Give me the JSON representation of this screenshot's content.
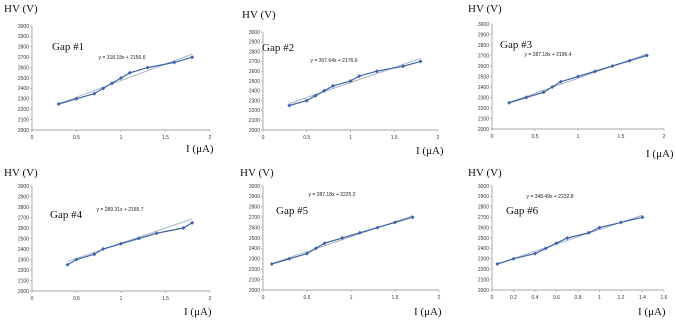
{
  "chart_data": [
    {
      "type": "line",
      "panel_label": "Gap #1",
      "ylabel": "HV (V)",
      "xlabel": "I (μA)",
      "equation": "y = 318.18x + 2156.6",
      "xlim": [
        0,
        2
      ],
      "ylim": [
        2000,
        3000
      ],
      "x_ticks": [
        "0",
        "0.5",
        "1",
        "1.5",
        "2"
      ],
      "y_ticks": [
        "2000",
        "2100",
        "2200",
        "2300",
        "2400",
        "2500",
        "2600",
        "2700",
        "2800",
        "2900",
        "3000"
      ],
      "series": [
        {
          "values": [
            [
              0.3,
              2250
            ],
            [
              0.5,
              2300
            ],
            [
              0.7,
              2350
            ],
            [
              0.8,
              2400
            ],
            [
              0.9,
              2450
            ],
            [
              1.0,
              2500
            ],
            [
              1.1,
              2550
            ],
            [
              1.3,
              2600
            ],
            [
              1.6,
              2650
            ],
            [
              1.8,
              2700
            ]
          ]
        }
      ],
      "trendline": {
        "slope": 318.18,
        "intercept": 2156.6,
        "x_range": [
          0.3,
          1.8
        ]
      },
      "colors": {
        "series": "#3e63a6",
        "trend": "#a7b4c6"
      }
    },
    {
      "type": "line",
      "panel_label": "Gap #2",
      "ylabel": "HV (V)",
      "xlabel": "I (μA)",
      "equation": "y = 307.64x + 2176.6",
      "xlim": [
        0,
        2
      ],
      "ylim": [
        2000,
        3000
      ],
      "x_ticks": [
        "0",
        "0.5",
        "1",
        "1.5",
        "2"
      ],
      "y_ticks": [
        "2000",
        "2100",
        "2200",
        "2300",
        "2400",
        "2500",
        "2600",
        "2700",
        "2800",
        "2900",
        "3000"
      ],
      "series": [
        {
          "values": [
            [
              0.3,
              2250
            ],
            [
              0.5,
              2300
            ],
            [
              0.6,
              2350
            ],
            [
              0.7,
              2400
            ],
            [
              0.8,
              2450
            ],
            [
              1.0,
              2500
            ],
            [
              1.1,
              2550
            ],
            [
              1.3,
              2600
            ],
            [
              1.6,
              2650
            ],
            [
              1.8,
              2700
            ]
          ]
        }
      ],
      "trendline": {
        "slope": 307.64,
        "intercept": 2176.6,
        "x_range": [
          0.3,
          1.8
        ]
      },
      "colors": {
        "series": "#3e63a6",
        "trend": "#a7b4c6"
      }
    },
    {
      "type": "line",
      "panel_label": "Gap #3",
      "ylabel": "HV (V)",
      "xlabel": "I (μA)",
      "equation": "y = 287.18x + 2196.4",
      "xlim": [
        0,
        2
      ],
      "ylim": [
        2000,
        3000
      ],
      "x_ticks": [
        "0",
        "0.5",
        "1",
        "1.5",
        "2"
      ],
      "y_ticks": [
        "2000",
        "2100",
        "2200",
        "2300",
        "2400",
        "2500",
        "2600",
        "2700",
        "2800",
        "2900",
        "3000"
      ],
      "series": [
        {
          "values": [
            [
              0.2,
              2250
            ],
            [
              0.4,
              2300
            ],
            [
              0.6,
              2350
            ],
            [
              0.7,
              2400
            ],
            [
              0.8,
              2450
            ],
            [
              1.0,
              2500
            ],
            [
              1.2,
              2550
            ],
            [
              1.4,
              2600
            ],
            [
              1.6,
              2650
            ],
            [
              1.8,
              2700
            ]
          ]
        }
      ],
      "trendline": {
        "slope": 287.18,
        "intercept": 2196.4,
        "x_range": [
          0.2,
          1.8
        ]
      },
      "colors": {
        "series": "#3e63a6",
        "trend": "#a7b4c6"
      }
    },
    {
      "type": "line",
      "panel_label": "Gap #4",
      "ylabel": "HV (V)",
      "xlabel": "I (μA)",
      "equation": "y = 289.31x + 2165.7",
      "xlim": [
        0,
        2
      ],
      "ylim": [
        2000,
        3000
      ],
      "x_ticks": [
        "0",
        "0.5",
        "1",
        "1.5",
        "2"
      ],
      "y_ticks": [
        "2000",
        "2100",
        "2200",
        "2300",
        "2400",
        "2500",
        "2600",
        "2700",
        "2800",
        "2900",
        "3000"
      ],
      "series": [
        {
          "values": [
            [
              0.4,
              2250
            ],
            [
              0.5,
              2300
            ],
            [
              0.7,
              2350
            ],
            [
              0.8,
              2400
            ],
            [
              1.0,
              2450
            ],
            [
              1.2,
              2500
            ],
            [
              1.4,
              2550
            ],
            [
              1.7,
              2600
            ],
            [
              1.8,
              2650
            ]
          ]
        }
      ],
      "trendline": {
        "slope": 289.31,
        "intercept": 2165.7,
        "x_range": [
          0.4,
          1.8
        ]
      },
      "colors": {
        "series": "#3e63a6",
        "trend": "#a7b4c6"
      }
    },
    {
      "type": "line",
      "panel_label": "Gap #5",
      "ylabel": "HV (V)",
      "xlabel": "I (μA)",
      "equation": "y = 287.18x + 2225.2",
      "xlim": [
        0,
        2
      ],
      "ylim": [
        2000,
        3000
      ],
      "x_ticks": [
        "0",
        "0.5",
        "1",
        "1.5",
        "2"
      ],
      "y_ticks": [
        "2000",
        "2100",
        "2200",
        "2300",
        "2400",
        "2500",
        "2600",
        "2700",
        "2800",
        "2900",
        "3000"
      ],
      "series": [
        {
          "values": [
            [
              0.1,
              2250
            ],
            [
              0.3,
              2300
            ],
            [
              0.5,
              2350
            ],
            [
              0.6,
              2400
            ],
            [
              0.7,
              2450
            ],
            [
              0.9,
              2500
            ],
            [
              1.1,
              2550
            ],
            [
              1.3,
              2600
            ],
            [
              1.5,
              2650
            ],
            [
              1.7,
              2700
            ]
          ]
        }
      ],
      "trendline": {
        "slope": 287.18,
        "intercept": 2225.2,
        "x_range": [
          0.1,
          1.7
        ]
      },
      "colors": {
        "series": "#3e63a6",
        "trend": "#a7b4c6"
      }
    },
    {
      "type": "line",
      "panel_label": "Gap #6",
      "ylabel": "HV (V)",
      "xlabel": "I (μA)",
      "equation": "y = 348.49x + 2232.8",
      "xlim": [
        0,
        1.6
      ],
      "ylim": [
        2000,
        3000
      ],
      "x_ticks": [
        "0",
        "0.2",
        "0.4",
        "0.6",
        "0.8",
        "1",
        "1.2",
        "1.4",
        "1.6"
      ],
      "y_ticks": [
        "2000",
        "2100",
        "2200",
        "2300",
        "2400",
        "2500",
        "2600",
        "2700",
        "2800",
        "2900",
        "3000"
      ],
      "series": [
        {
          "values": [
            [
              0.05,
              2250
            ],
            [
              0.2,
              2300
            ],
            [
              0.4,
              2350
            ],
            [
              0.5,
              2400
            ],
            [
              0.6,
              2450
            ],
            [
              0.7,
              2500
            ],
            [
              0.9,
              2550
            ],
            [
              1.0,
              2600
            ],
            [
              1.2,
              2650
            ],
            [
              1.4,
              2700
            ]
          ]
        }
      ],
      "trendline": {
        "slope": 348.49,
        "intercept": 2232.8,
        "x_range": [
          0.05,
          1.4
        ]
      },
      "colors": {
        "series": "#3e63a6",
        "trend": "#a7b4c6"
      }
    }
  ]
}
